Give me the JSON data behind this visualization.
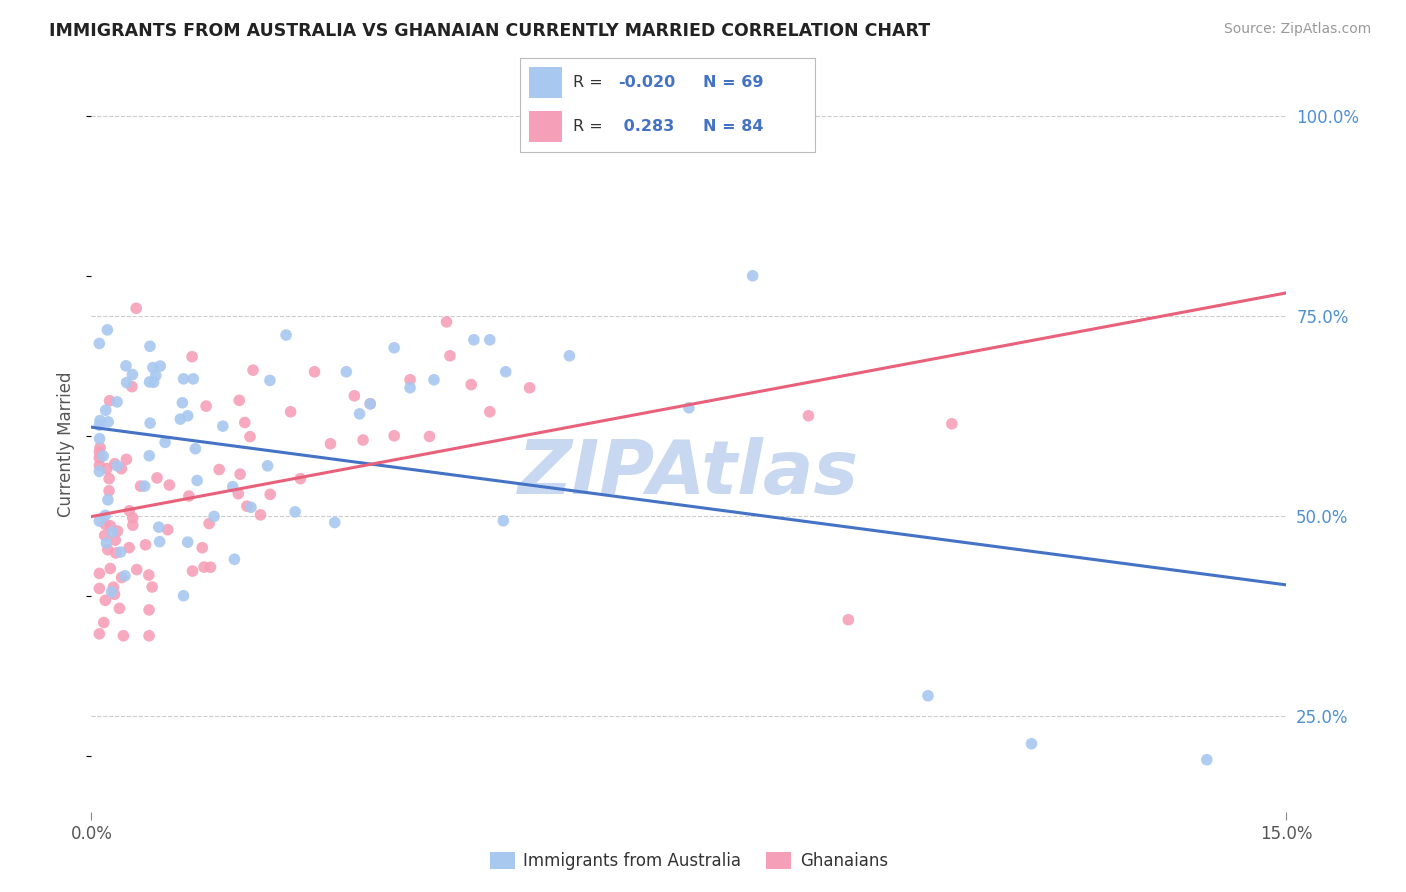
{
  "title": "IMMIGRANTS FROM AUSTRALIA VS GHANAIAN CURRENTLY MARRIED CORRELATION CHART",
  "source_text": "Source: ZipAtlas.com",
  "ylabel": "Currently Married",
  "watermark": "ZIPAtlas",
  "r1": -0.02,
  "r2": 0.283,
  "n1": 69,
  "n2": 84,
  "xlim": [
    0.0,
    0.15
  ],
  "ylim": [
    0.13,
    1.05
  ],
  "color_blue": "#A8C8F0",
  "color_pink": "#F5A0B8",
  "line_blue": "#4472C4",
  "line_pink": "#E8607A",
  "background_color": "#FFFFFF",
  "grid_color": "#CCCCCC",
  "watermark_color": "#C8D8F0",
  "right_tick_color": "#5090D0"
}
